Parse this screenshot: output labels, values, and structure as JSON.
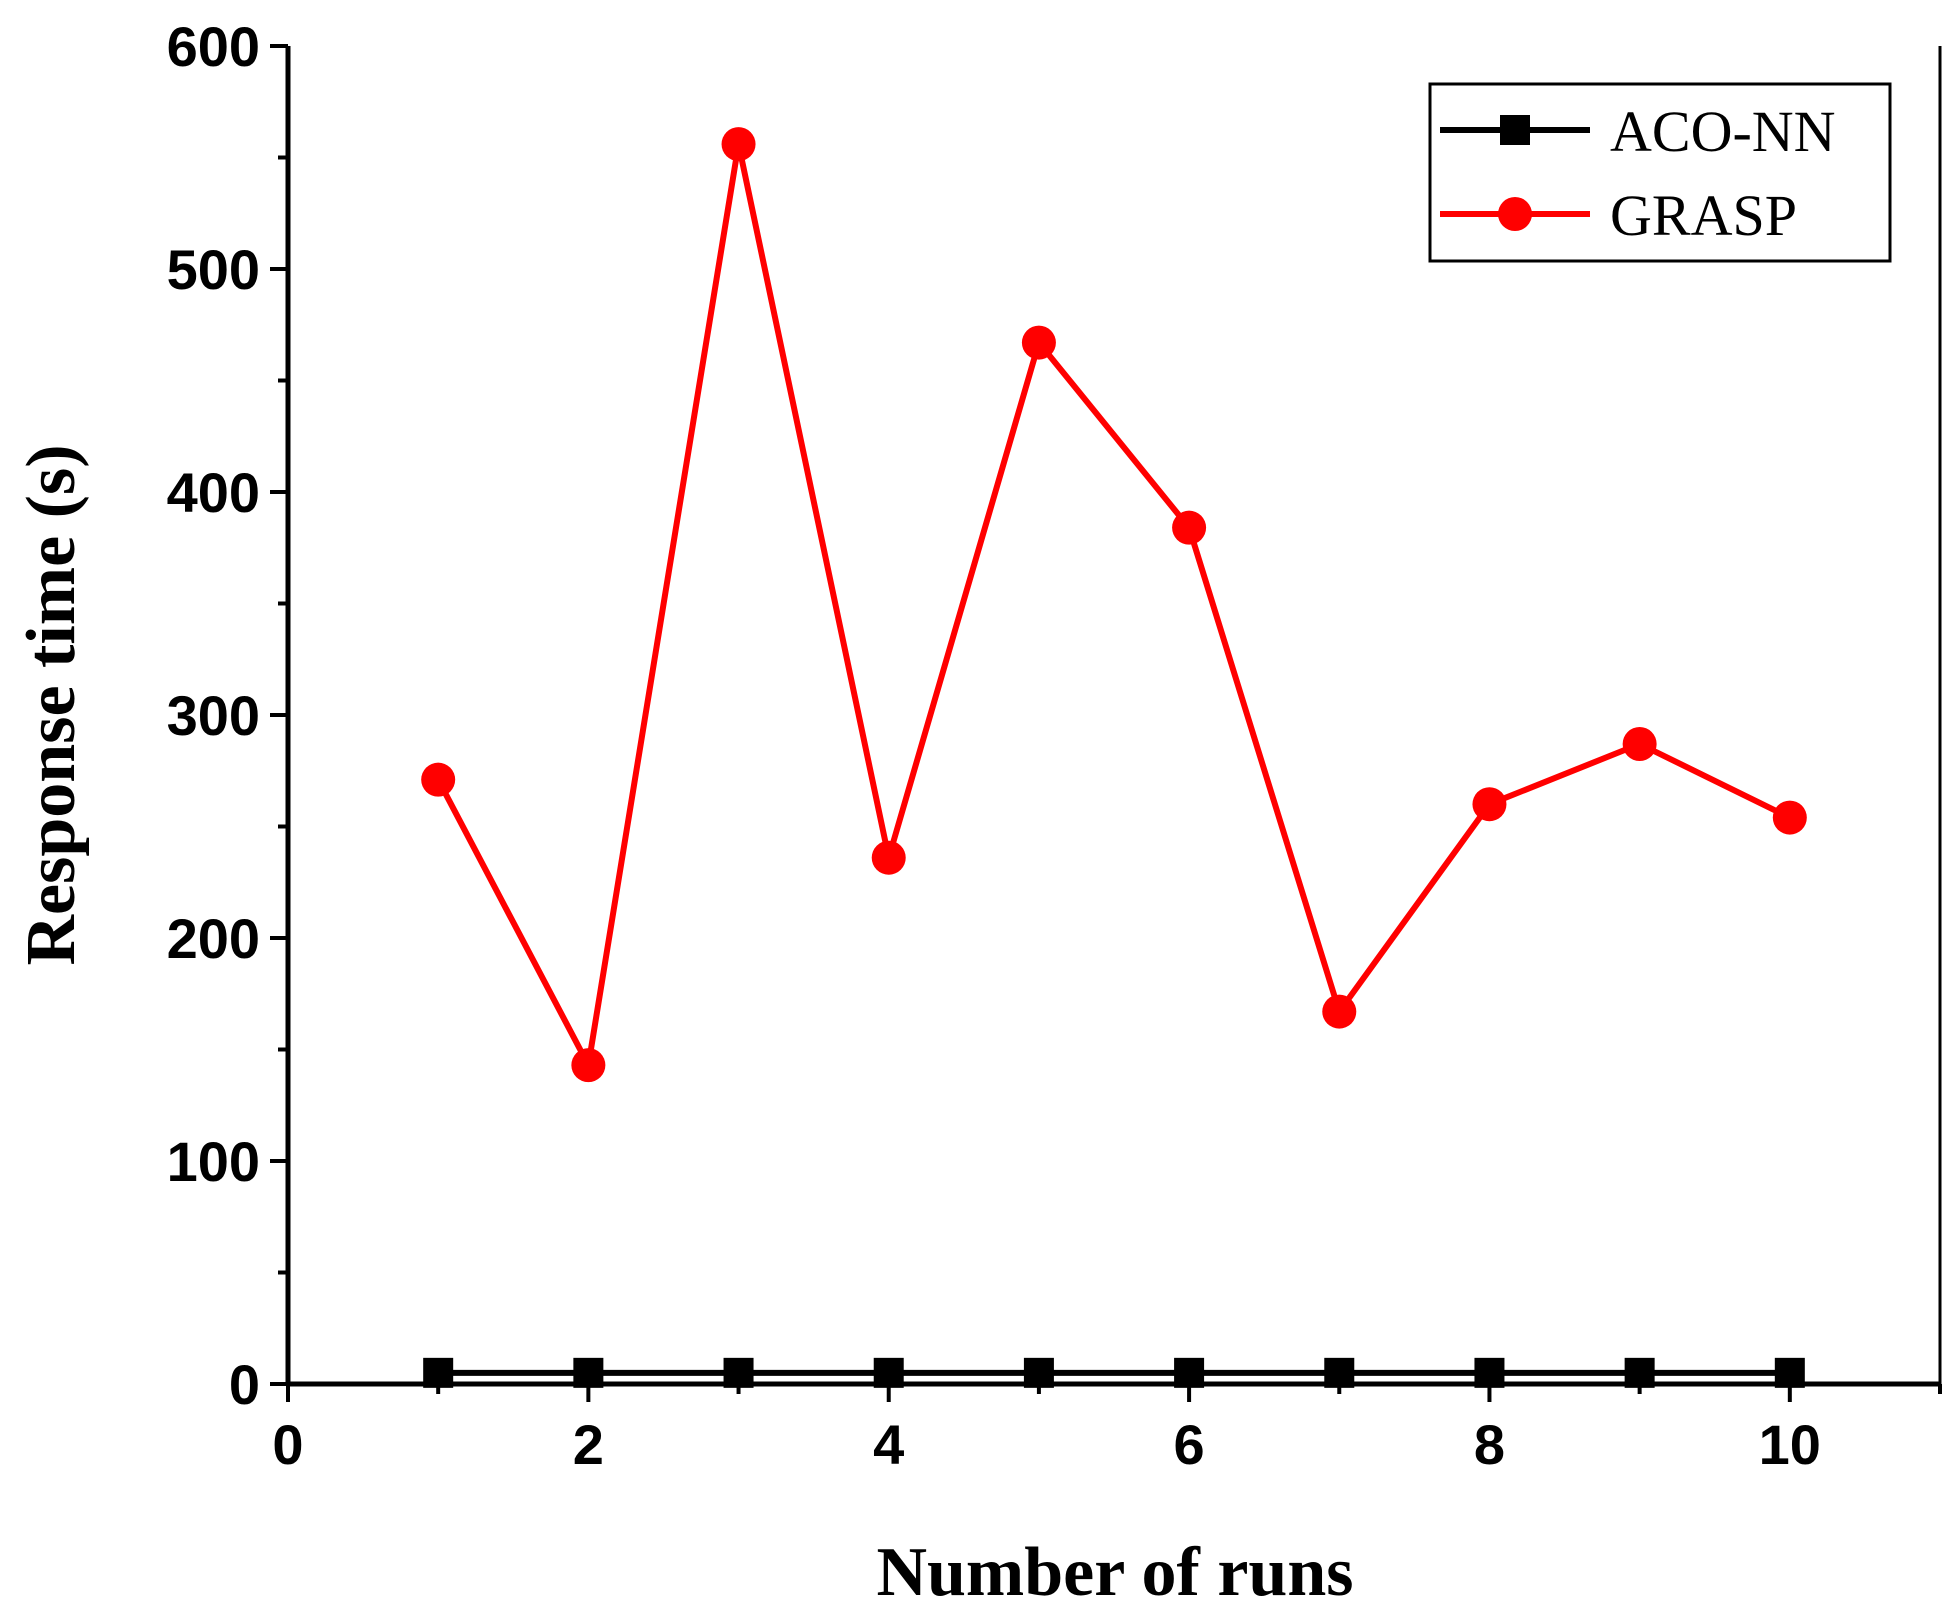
{
  "chart_data": {
    "type": "line",
    "title": "",
    "xlabel": "Number of runs",
    "ylabel": "Response time (s)",
    "xlim": [
      0,
      11
    ],
    "ylim": [
      0,
      600
    ],
    "xticks": [
      0,
      2,
      4,
      6,
      8,
      10
    ],
    "yticks": [
      0,
      100,
      200,
      300,
      400,
      500,
      600
    ],
    "x": [
      1,
      2,
      3,
      4,
      5,
      6,
      7,
      8,
      9,
      10
    ],
    "series": [
      {
        "name": "ACO-NN",
        "color": "#000000",
        "marker": "square",
        "values": [
          5,
          5,
          5,
          5,
          5,
          5,
          5,
          5,
          5,
          5
        ]
      },
      {
        "name": "GRASP",
        "color": "#ff0000",
        "marker": "circle",
        "values": [
          271,
          143,
          556,
          236,
          467,
          384,
          167,
          260,
          287,
          254
        ]
      }
    ],
    "legend_position": "top-right",
    "grid": false
  }
}
